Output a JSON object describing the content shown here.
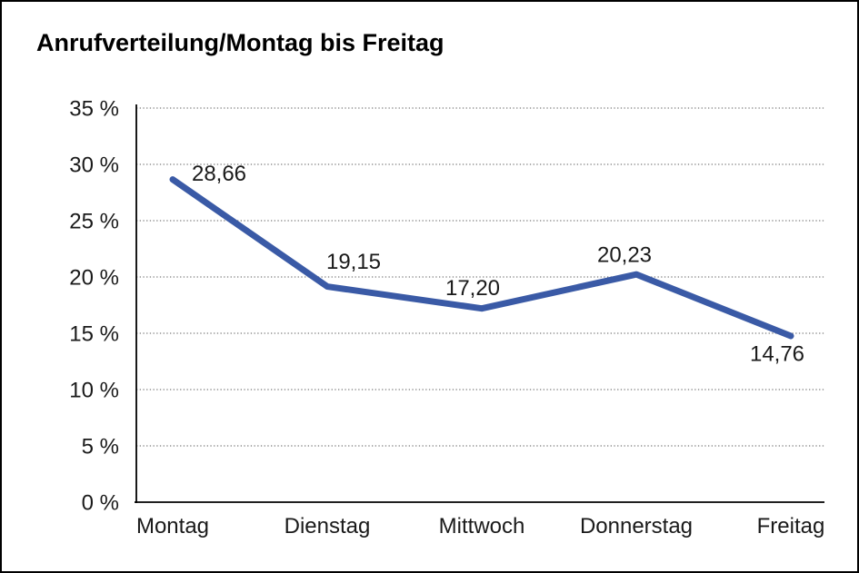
{
  "window": {
    "background": "#ffffff",
    "frame_border_color": "#000000"
  },
  "header": {
    "title": "Anrufverteilung/Montag bis Freitag"
  },
  "chart_data": {
    "type": "line",
    "title": "Anrufverteilung/Montag bis Freitag",
    "categories": [
      "Montag",
      "Dienstag",
      "Mittwoch",
      "Donnerstag",
      "Freitag"
    ],
    "series": [
      {
        "name": "Anrufverteilung",
        "values": [
          28.66,
          19.15,
          17.2,
          20.23,
          14.76
        ]
      }
    ],
    "point_labels": [
      "28,66",
      "19,15",
      "17,20",
      "20,23",
      "14,76"
    ],
    "y_ticks": [
      "0 %",
      "5 %",
      "10 %",
      "15 %",
      "20 %",
      "25 %",
      "30 %",
      "35 %"
    ],
    "y_tick_values": [
      0,
      5,
      10,
      15,
      20,
      25,
      30,
      35
    ],
    "ylim": [
      0,
      35
    ],
    "xlabel": "",
    "ylabel": "",
    "grid": "horizontal-dotted",
    "legend": "none",
    "line_color": "#3A5AA6",
    "gridline_color": "#7a7a7a",
    "axis_color": "#000000",
    "label_color": "#1a1a1a"
  }
}
